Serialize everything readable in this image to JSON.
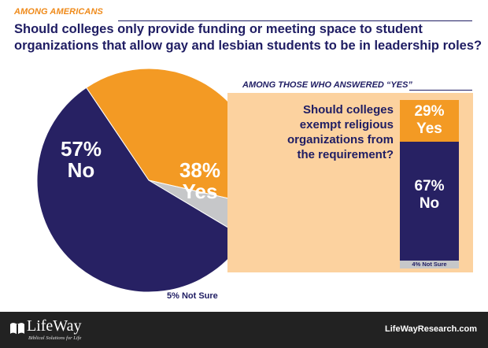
{
  "header": {
    "section_label": "AMONG AMERICANS"
  },
  "question": "Should colleges only provide funding or meeting space to student organizations that allow gay and lesbian students to be in leadership roles?",
  "subsection": {
    "label": "AMONG THOSE WHO ANSWERED “YES”",
    "question_lines": [
      "Should colleges",
      "exempt religious",
      "organizations from",
      "the requirement?"
    ]
  },
  "chart_data": [
    {
      "type": "pie",
      "slices": [
        {
          "label": "No",
          "value": 57,
          "pct": "57%",
          "color": "#272163"
        },
        {
          "label": "Yes",
          "value": 38,
          "pct": "38%",
          "color": "#f39a24"
        },
        {
          "label": "Not Sure",
          "value": 5,
          "pct": "5%",
          "color": "#c6c7c9"
        }
      ],
      "not_sure_label": "5% Not Sure"
    },
    {
      "type": "bar",
      "stacked": true,
      "segments": [
        {
          "label": "Yes",
          "value": 29,
          "pct": "29%",
          "color": "#f39a24"
        },
        {
          "label": "No",
          "value": 67,
          "pct": "67%",
          "color": "#272163"
        },
        {
          "label": "Not Sure",
          "value": 4,
          "text": "4% Not Sure",
          "color": "#c6c7c9"
        }
      ]
    }
  ],
  "footer": {
    "logo": "LifeWay",
    "tagline": "Biblical Solutions for Life",
    "website": "LifeWayResearch.com"
  }
}
